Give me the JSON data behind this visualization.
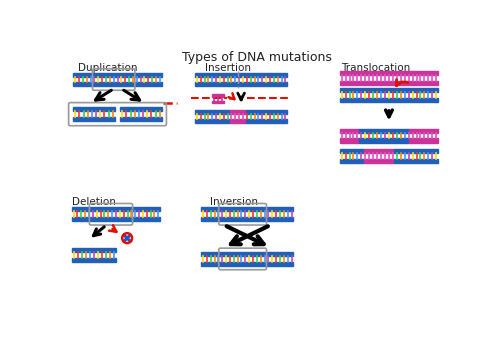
{
  "title": "Types of DNA mutations",
  "title_fontsize": 9,
  "background_color": "#ffffff",
  "labels": {
    "duplication": "Duplication",
    "insertion": "Insertion",
    "translocation": "Translocation",
    "deletion": "Deletion",
    "inversion": "Inversion"
  },
  "label_fontsize": 7.5,
  "strand_colors": [
    "#ffdd00",
    "#ff3333",
    "#44cc44",
    "#ff8800",
    "#4499ff",
    "#cc44aa"
  ],
  "dna_blue": "#2060bb",
  "dna_blue_light": "#4488dd",
  "pink": "#cc3399",
  "red": "#dd1100",
  "gray_box": "#999999",
  "black": "#111111"
}
